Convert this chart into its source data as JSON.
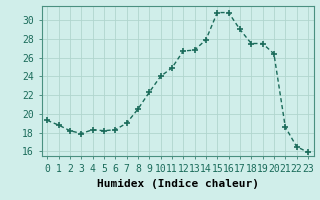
{
  "x": [
    0,
    1,
    2,
    3,
    4,
    5,
    6,
    7,
    8,
    9,
    10,
    11,
    12,
    13,
    14,
    15,
    16,
    17,
    18,
    19,
    20,
    21,
    22,
    23
  ],
  "y": [
    19.3,
    18.8,
    18.2,
    17.9,
    18.3,
    18.2,
    18.3,
    19.0,
    20.5,
    22.3,
    24.0,
    24.9,
    26.7,
    26.8,
    27.9,
    30.8,
    30.8,
    29.0,
    27.5,
    27.5,
    26.4,
    18.6,
    16.5,
    15.9
  ],
  "xlabel": "Humidex (Indice chaleur)",
  "xlim": [
    -0.5,
    23.5
  ],
  "ylim": [
    15.5,
    31.5
  ],
  "yticks": [
    16,
    18,
    20,
    22,
    24,
    26,
    28,
    30
  ],
  "xticks": [
    0,
    1,
    2,
    3,
    4,
    5,
    6,
    7,
    8,
    9,
    10,
    11,
    12,
    13,
    14,
    15,
    16,
    17,
    18,
    19,
    20,
    21,
    22,
    23
  ],
  "line_color": "#1a6b5a",
  "marker": "+",
  "marker_size": 4,
  "bg_color": "#d0eeea",
  "grid_color": "#b0d5ce",
  "xlabel_fontsize": 8,
  "tick_fontsize": 7,
  "lw": 1.0
}
